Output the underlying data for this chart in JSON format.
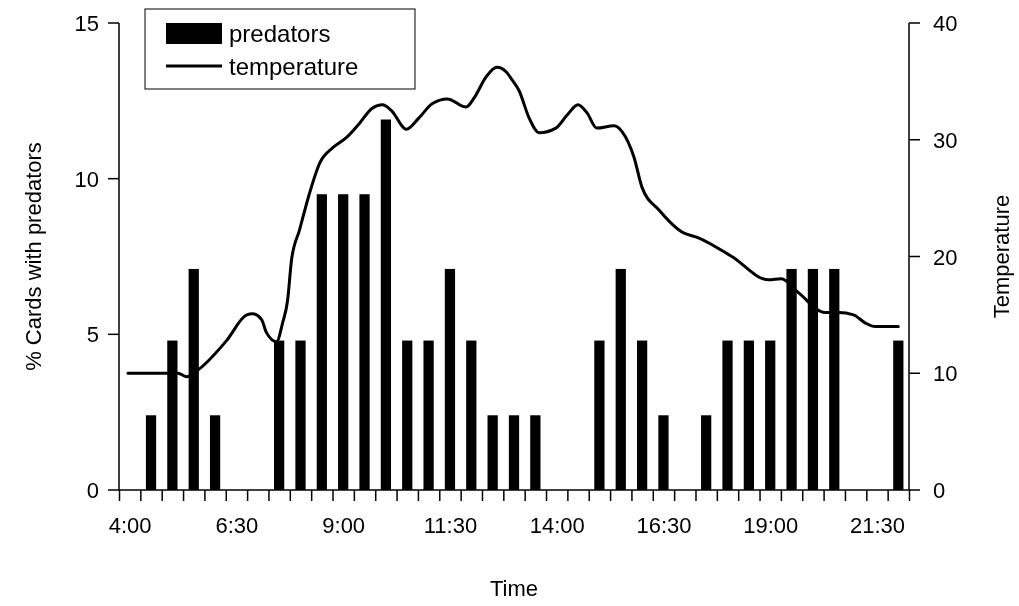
{
  "chart_data": {
    "type": "bar",
    "xlabel": "Time",
    "ylabel": "% Cards with predators",
    "y2label": "Temperature",
    "legend": "top left",
    "xlim": [
      3.75,
      22.25
    ],
    "ylim": [
      0,
      15
    ],
    "yticks": [
      0,
      5,
      10,
      15
    ],
    "y2lim": [
      0,
      40
    ],
    "y2ticks": [
      0,
      10,
      20,
      30,
      40
    ],
    "xticks": [
      {
        "value": 4,
        "label": "4:00"
      },
      {
        "value": 6.5,
        "label": "6:30"
      },
      {
        "value": 9,
        "label": "9:00"
      },
      {
        "value": 11.5,
        "label": "11:30"
      },
      {
        "value": 14,
        "label": "14:00"
      },
      {
        "value": 16.5,
        "label": "16:30"
      },
      {
        "value": 19,
        "label": "19:00"
      },
      {
        "value": 21.5,
        "label": "21:30"
      },
      {
        "value": 3.75,
        "label": null
      },
      {
        "value": 4.25,
        "label": null
      },
      {
        "value": 4.75,
        "label": null
      },
      {
        "value": 5.25,
        "label": null
      },
      {
        "value": 5.75,
        "label": null
      },
      {
        "value": 6.25,
        "label": null
      },
      {
        "value": 6.75,
        "label": null
      },
      {
        "value": 7.25,
        "label": null
      },
      {
        "value": 7.75,
        "label": null
      },
      {
        "value": 8.25,
        "label": null
      },
      {
        "value": 8.75,
        "label": null
      },
      {
        "value": 9.25,
        "label": null
      },
      {
        "value": 9.75,
        "label": null
      },
      {
        "value": 10.25,
        "label": null
      },
      {
        "value": 10.75,
        "label": null
      },
      {
        "value": 11.25,
        "label": null
      },
      {
        "value": 11.75,
        "label": null
      },
      {
        "value": 12.25,
        "label": null
      },
      {
        "value": 12.75,
        "label": null
      },
      {
        "value": 13.25,
        "label": null
      },
      {
        "value": 13.75,
        "label": null
      },
      {
        "value": 14.25,
        "label": null
      },
      {
        "value": 14.75,
        "label": null
      },
      {
        "value": 15.25,
        "label": null
      },
      {
        "value": 15.75,
        "label": null
      },
      {
        "value": 16.25,
        "label": null
      },
      {
        "value": 16.75,
        "label": null
      },
      {
        "value": 17.25,
        "label": null
      },
      {
        "value": 17.75,
        "label": null
      },
      {
        "value": 18.25,
        "label": null
      },
      {
        "value": 18.75,
        "label": null
      },
      {
        "value": 19.25,
        "label": null
      },
      {
        "value": 19.75,
        "label": null
      },
      {
        "value": 20.25,
        "label": null
      },
      {
        "value": 20.75,
        "label": null
      },
      {
        "value": 21.25,
        "label": null
      },
      {
        "value": 21.75,
        "label": null
      },
      {
        "value": 22.25,
        "label": null
      }
    ],
    "series": [
      {
        "name": "predators",
        "color": "#000000",
        "x": [
          4,
          4.5,
          5,
          5.5,
          6,
          6.5,
          7,
          7.5,
          8,
          8.5,
          9,
          9.5,
          10,
          10.5,
          11,
          11.5,
          12,
          12.5,
          13,
          13.5,
          14,
          14.5,
          15,
          15.5,
          16,
          16.5,
          17,
          17.5,
          18,
          18.5,
          19,
          19.5,
          20,
          20.5,
          21,
          21.5,
          22
        ],
        "values": [
          0,
          2.4,
          4.8,
          7.1,
          2.4,
          0,
          0,
          4.8,
          4.8,
          9.5,
          9.5,
          9.5,
          11.9,
          4.8,
          4.8,
          7.1,
          4.8,
          2.4,
          2.4,
          2.4,
          0,
          0,
          4.8,
          7.1,
          4.8,
          2.4,
          0,
          2.4,
          4.8,
          4.8,
          4.8,
          7.1,
          7.1,
          7.1,
          0,
          0,
          4.8
        ]
      },
      {
        "name": "temperature",
        "type": "line",
        "axis": "y2",
        "color": "#000000",
        "line_style": "solid",
        "marker": "none",
        "x": [
          3.96,
          5.13,
          5.34,
          5.64,
          6.27,
          6.74,
          6.88,
          7.09,
          7.2,
          7.44,
          7.58,
          7.7,
          7.79,
          7.98,
          8.21,
          8.45,
          8.75,
          9.08,
          9.38,
          9.68,
          9.92,
          10.13,
          10.48,
          10.78,
          11.09,
          11.44,
          11.88,
          12.07,
          12.35,
          12.6,
          12.82,
          12.96,
          13.12,
          13.35,
          13.59,
          13.98,
          14.24,
          14.5,
          14.71,
          14.94,
          15.34,
          15.53,
          15.81,
          16.0,
          16.39,
          16.93,
          17.32,
          18.1,
          18.96,
          19.26,
          19.66,
          20.29,
          20.6,
          20.95,
          21.23,
          21.46,
          22.0
        ],
        "values": [
          10,
          10,
          9.7,
          10.4,
          12.8,
          15,
          15.1,
          14.6,
          13.5,
          12.7,
          14.3,
          16.3,
          19.7,
          22.3,
          25.4,
          28,
          29.3,
          30.2,
          31.4,
          32.7,
          33,
          32.5,
          30.9,
          31.9,
          33.1,
          33.5,
          32.8,
          33.6,
          35.4,
          36.2,
          35.8,
          35.1,
          34.2,
          31.9,
          30.6,
          31,
          32.1,
          33,
          32.3,
          31,
          31.2,
          30.7,
          28.5,
          25.9,
          24,
          22.1,
          21.6,
          20,
          18,
          18.1,
          16.9,
          15.2,
          15.2,
          15,
          14.3,
          14,
          14
        ]
      }
    ]
  }
}
